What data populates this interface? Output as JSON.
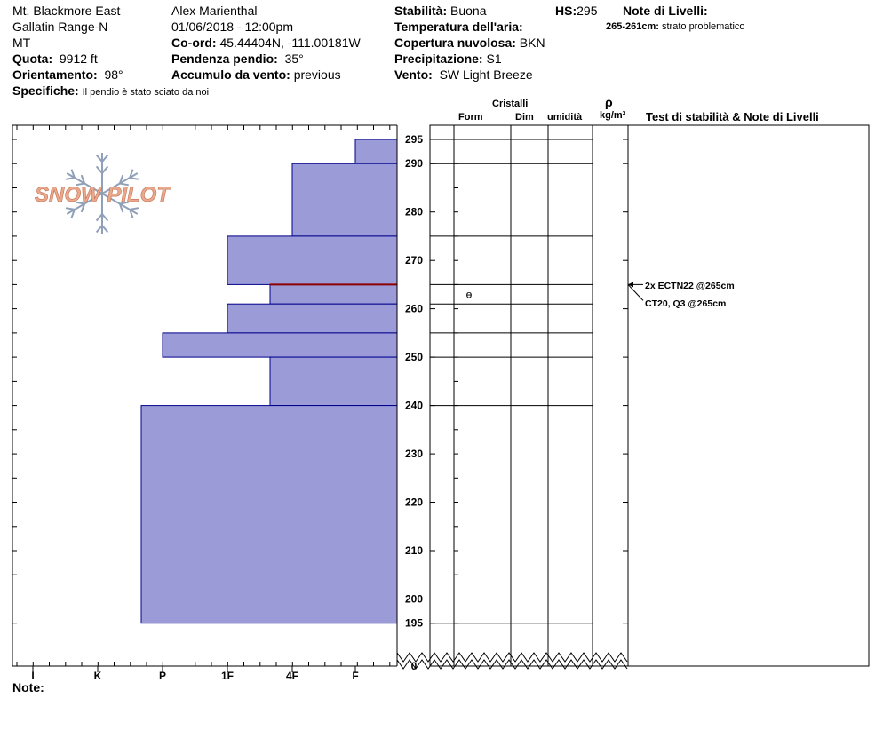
{
  "header": {
    "location": "Mt. Blackmore East",
    "range": "Gallatin Range-N",
    "state": "MT",
    "elevation_label": "Quota:",
    "elevation": "9912 ft",
    "aspect_label": "Orientamento:",
    "aspect": "98°",
    "specifics_label": "Specifiche:",
    "specifics": "Il pendio è stato sciato da noi",
    "observer": "Alex Marienthal",
    "datetime": "01/06/2018 - 12:00pm",
    "coord_label": "Co-ord:",
    "coord": "45.44404N, -111.00181W",
    "slope_label": "Pendenza pendio:",
    "slope": "35°",
    "wind_loading_label": "Accumulo da vento:",
    "wind_loading": "previous",
    "stability_label": "Stabilità:",
    "stability": "Buona",
    "hs_label": "HS:",
    "hs": "295",
    "air_temp_label": "Temperatura dell'aria:",
    "sky_label": "Copertura nuvolosa:",
    "sky": "BKN",
    "precip_label": "Precipitazione:",
    "precip": "S1",
    "wind_label": "Vento:",
    "wind": "SW Light Breeze",
    "layer_notes_label": "Note di Livelli:",
    "layer_note_range": "265-261cm:",
    "layer_note_text": "strato problematico"
  },
  "logo": {
    "text": "SNOW PILOT"
  },
  "columns": {
    "crystals": "Cristalli",
    "form": "Form",
    "dim": "Dim",
    "moisture": "umidità",
    "density_symbol": "ρ",
    "density_unit": "kg/m³",
    "tests": "Test di stabilità & Note di Livelli"
  },
  "tests": {
    "ectn": "2x ECTN22 @265cm",
    "ct": "CT20, Q3 @265cm"
  },
  "footer": {
    "notes_label": "Note:"
  },
  "colors": {
    "layer_fill": "#9b9bd8",
    "layer_stroke": "#00008b",
    "weak_layer": "#8b0000"
  },
  "chart_data": {
    "type": "bar",
    "orientation": "horizontal",
    "title": "",
    "xlabel": "",
    "ylabel": "",
    "hardness_ticks": [
      "I",
      "K",
      "P",
      "1F",
      "4F",
      "F"
    ],
    "height_ticks": [
      0,
      195,
      200,
      210,
      220,
      230,
      240,
      250,
      260,
      270,
      280,
      290,
      295
    ],
    "ylim": [
      195,
      295
    ],
    "snow_depth_break": true,
    "layers": [
      {
        "top": 295,
        "bottom": 290,
        "hardness": "F"
      },
      {
        "top": 290,
        "bottom": 275,
        "hardness": "4F"
      },
      {
        "top": 275,
        "bottom": 265,
        "hardness": "1F"
      },
      {
        "top": 265,
        "bottom": 261,
        "hardness": "F+",
        "weak_layer": true
      },
      {
        "top": 261,
        "bottom": 255,
        "hardness": "1F"
      },
      {
        "top": 255,
        "bottom": 250,
        "hardness": "P"
      },
      {
        "top": 250,
        "bottom": 240,
        "hardness": "F+"
      },
      {
        "top": 240,
        "bottom": 195,
        "hardness": "P+"
      }
    ],
    "layer_boundaries": [
      295,
      290,
      275,
      265,
      261,
      255,
      250,
      240,
      195
    ],
    "grain_form": [
      {
        "height": 263,
        "symbol": "ɵ"
      }
    ]
  }
}
